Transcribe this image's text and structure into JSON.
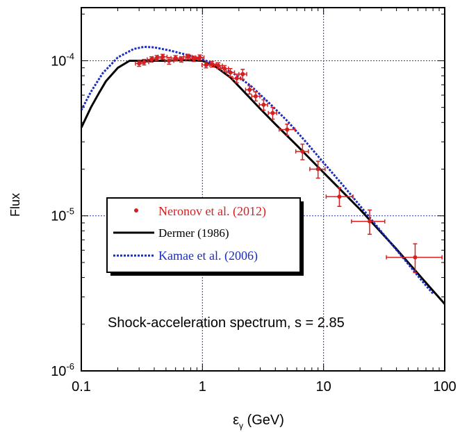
{
  "chart_data": {
    "type": "scatter",
    "xlabel_main": "ε",
    "xlabel_sub": "γ",
    "xlabel_unit": " (GeV)",
    "ylabel": "Flux",
    "x_scale": "log",
    "y_scale": "log",
    "xlim": [
      0.1,
      100
    ],
    "ylim": [
      1e-06,
      0.00022
    ],
    "grid": "dotted at decades",
    "x_ticks": [
      {
        "v": 0.1,
        "label": "0.1"
      },
      {
        "v": 1,
        "label": "1"
      },
      {
        "v": 10,
        "label": "10"
      },
      {
        "v": 100,
        "label": "100"
      }
    ],
    "y_ticks": [
      {
        "v": 1e-06,
        "base": "10",
        "exp": "-6"
      },
      {
        "v": 1e-05,
        "base": "10",
        "exp": "-5"
      },
      {
        "v": 0.0001,
        "base": "10",
        "exp": "-4"
      }
    ],
    "annotation": "Shock-acceleration spectrum, s = 2.85",
    "legend_position": "center-left",
    "series": [
      {
        "name": "Neronov et al. (2012)",
        "kind": "points",
        "color": "#d42020",
        "points": [
          {
            "x": 0.3,
            "y": 9.6e-05,
            "xlo": 0.28,
            "xhi": 0.33,
            "ylo": 9.2e-05,
            "yhi": 0.0001
          },
          {
            "x": 0.33,
            "y": 9.8e-05,
            "xlo": 0.31,
            "xhi": 0.36,
            "ylo": 9.4e-05,
            "yhi": 0.000102
          },
          {
            "x": 0.38,
            "y": 0.000102,
            "xlo": 0.35,
            "xhi": 0.41,
            "ylo": 9.8e-05,
            "yhi": 0.000106
          },
          {
            "x": 0.42,
            "y": 0.000104,
            "xlo": 0.39,
            "xhi": 0.46,
            "ylo": 0.0001,
            "yhi": 0.000108
          },
          {
            "x": 0.47,
            "y": 0.000106,
            "xlo": 0.43,
            "xhi": 0.51,
            "ylo": 0.000102,
            "yhi": 0.00011
          },
          {
            "x": 0.53,
            "y": 0.0001,
            "xlo": 0.49,
            "xhi": 0.58,
            "ylo": 9.5e-05,
            "yhi": 0.000105
          },
          {
            "x": 0.6,
            "y": 0.000104,
            "xlo": 0.55,
            "xhi": 0.65,
            "ylo": 0.0001,
            "yhi": 0.000108
          },
          {
            "x": 0.67,
            "y": 0.000102,
            "xlo": 0.62,
            "xhi": 0.73,
            "ylo": 9.8e-05,
            "yhi": 0.000106
          },
          {
            "x": 0.76,
            "y": 0.000106,
            "xlo": 0.7,
            "xhi": 0.82,
            "ylo": 0.000102,
            "yhi": 0.00011
          },
          {
            "x": 0.85,
            "y": 0.000103,
            "xlo": 0.79,
            "xhi": 0.92,
            "ylo": 9.9e-05,
            "yhi": 0.000107
          },
          {
            "x": 0.95,
            "y": 0.000105,
            "xlo": 0.88,
            "xhi": 1.03,
            "ylo": 0.000101,
            "yhi": 0.000109
          },
          {
            "x": 1.07,
            "y": 9.4e-05,
            "xlo": 0.99,
            "xhi": 1.15,
            "ylo": 9e-05,
            "yhi": 9.8e-05
          },
          {
            "x": 1.2,
            "y": 9.5e-05,
            "xlo": 1.11,
            "xhi": 1.3,
            "ylo": 9.1e-05,
            "yhi": 9.9e-05
          },
          {
            "x": 1.35,
            "y": 9.3e-05,
            "xlo": 1.25,
            "xhi": 1.46,
            "ylo": 8.9e-05,
            "yhi": 9.7e-05
          },
          {
            "x": 1.52,
            "y": 8.9e-05,
            "xlo": 1.41,
            "xhi": 1.64,
            "ylo": 8.5e-05,
            "yhi": 9.3e-05
          },
          {
            "x": 1.7,
            "y": 8.4e-05,
            "xlo": 1.58,
            "xhi": 1.84,
            "ylo": 7.9e-05,
            "yhi": 8.9e-05
          },
          {
            "x": 1.92,
            "y": 7.7e-05,
            "xlo": 1.78,
            "xhi": 2.07,
            "ylo": 7.2e-05,
            "yhi": 8.2e-05
          },
          {
            "x": 2.15,
            "y": 8.2e-05,
            "xlo": 2.0,
            "xhi": 2.32,
            "ylo": 7.6e-05,
            "yhi": 8.8e-05
          },
          {
            "x": 2.45,
            "y": 6.5e-05,
            "xlo": 2.27,
            "xhi": 2.65,
            "ylo": 6.1e-05,
            "yhi": 6.9e-05
          },
          {
            "x": 2.75,
            "y": 5.9e-05,
            "xlo": 2.55,
            "xhi": 2.98,
            "ylo": 5.5e-05,
            "yhi": 6.3e-05
          },
          {
            "x": 3.2,
            "y": 5.2e-05,
            "xlo": 2.95,
            "xhi": 3.45,
            "ylo": 4.8e-05,
            "yhi": 5.6e-05
          },
          {
            "x": 3.8,
            "y": 4.6e-05,
            "xlo": 3.5,
            "xhi": 4.1,
            "ylo": 4.2e-05,
            "yhi": 5e-05
          },
          {
            "x": 5.0,
            "y": 3.6e-05,
            "xlo": 4.3,
            "xhi": 5.8,
            "ylo": 3.3e-05,
            "yhi": 3.9e-05
          },
          {
            "x": 6.7,
            "y": 2.6e-05,
            "xlo": 5.9,
            "xhi": 7.5,
            "ylo": 2.3e-05,
            "yhi": 2.9e-05
          },
          {
            "x": 9.0,
            "y": 2e-05,
            "xlo": 7.7,
            "xhi": 10.3,
            "ylo": 1.75e-05,
            "yhi": 2.25e-05
          },
          {
            "x": 13.5,
            "y": 1.33e-05,
            "xlo": 10.5,
            "xhi": 17.5,
            "ylo": 1.15e-05,
            "yhi": 1.52e-05
          },
          {
            "x": 24.0,
            "y": 9.2e-06,
            "xlo": 17.0,
            "xhi": 32.0,
            "ylo": 7.6e-06,
            "yhi": 1.09e-05
          },
          {
            "x": 57.0,
            "y": 5.4e-06,
            "xlo": 33.0,
            "xhi": 95.0,
            "ylo": 4.3e-06,
            "yhi": 6.6e-06
          }
        ]
      },
      {
        "name": "Dermer (1986)",
        "kind": "line",
        "color": "#000000",
        "points": [
          {
            "x": 0.1,
            "y": 3.7e-05
          },
          {
            "x": 0.12,
            "y": 5e-05
          },
          {
            "x": 0.14,
            "y": 6.2e-05
          },
          {
            "x": 0.16,
            "y": 7.4e-05
          },
          {
            "x": 0.2,
            "y": 9e-05
          },
          {
            "x": 0.25,
            "y": 0.0001
          },
          {
            "x": 0.35,
            "y": 0.0001
          },
          {
            "x": 0.5,
            "y": 0.0001
          },
          {
            "x": 0.7,
            "y": 0.000101
          },
          {
            "x": 1.0,
            "y": 0.0001
          },
          {
            "x": 1.3,
            "y": 9.1e-05
          },
          {
            "x": 1.7,
            "y": 7.8e-05
          },
          {
            "x": 2.3,
            "y": 6.1e-05
          },
          {
            "x": 3.0,
            "y": 4.9e-05
          },
          {
            "x": 4.0,
            "y": 3.9e-05
          },
          {
            "x": 6.0,
            "y": 2.85e-05
          },
          {
            "x": 10,
            "y": 1.9e-05
          },
          {
            "x": 20,
            "y": 1.1e-05
          },
          {
            "x": 40,
            "y": 6.1e-06
          },
          {
            "x": 70,
            "y": 3.7e-06
          },
          {
            "x": 100,
            "y": 2.7e-06
          }
        ]
      },
      {
        "name": "Kamae et al. (2006)",
        "kind": "dashed-line",
        "color": "#1a2bbf",
        "points": [
          {
            "x": 0.1,
            "y": 4.8e-05
          },
          {
            "x": 0.12,
            "y": 6.3e-05
          },
          {
            "x": 0.15,
            "y": 8.3e-05
          },
          {
            "x": 0.2,
            "y": 0.000105
          },
          {
            "x": 0.27,
            "y": 0.000119
          },
          {
            "x": 0.33,
            "y": 0.000123
          },
          {
            "x": 0.4,
            "y": 0.000122
          },
          {
            "x": 0.55,
            "y": 0.000116
          },
          {
            "x": 0.75,
            "y": 0.000109
          },
          {
            "x": 1.0,
            "y": 0.000102
          },
          {
            "x": 1.3,
            "y": 9.4e-05
          },
          {
            "x": 1.8,
            "y": 8.3e-05
          },
          {
            "x": 2.5,
            "y": 6.9e-05
          },
          {
            "x": 3.5,
            "y": 5.4e-05
          },
          {
            "x": 5.0,
            "y": 4.1e-05
          },
          {
            "x": 7.0,
            "y": 3.05e-05
          },
          {
            "x": 10,
            "y": 2.2e-05
          },
          {
            "x": 15,
            "y": 1.52e-05
          },
          {
            "x": 20,
            "y": 1.16e-05
          },
          {
            "x": 30,
            "y": 7.9e-06
          },
          {
            "x": 45,
            "y": 5.4e-06
          },
          {
            "x": 65,
            "y": 3.8e-06
          },
          {
            "x": 80,
            "y": 3.15e-06
          }
        ]
      }
    ]
  }
}
